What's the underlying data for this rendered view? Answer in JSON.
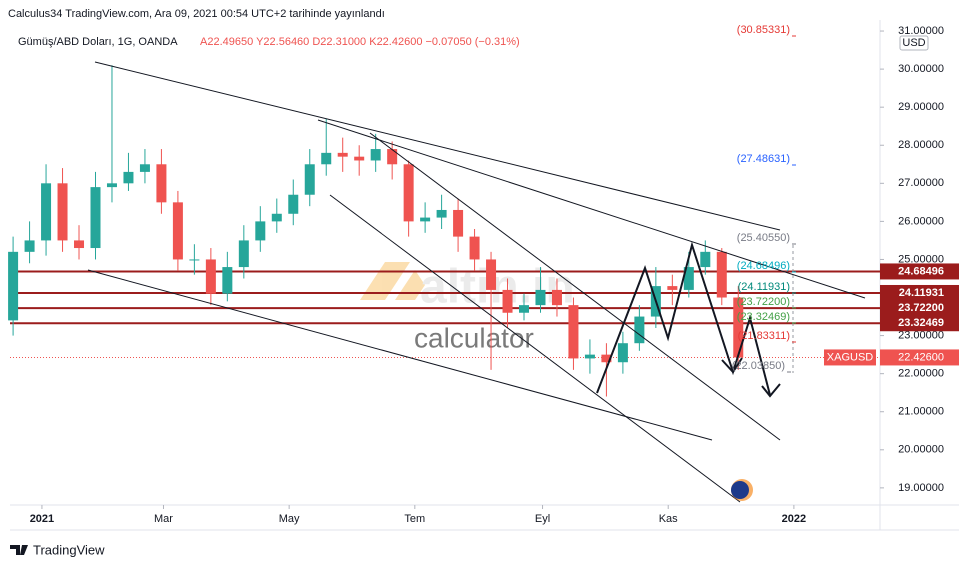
{
  "header": "Calculus34 TradingView.com, Ara 09, 2021 00:54 UTC+2 tarihinde yayınlandı",
  "footer": "TradingView",
  "watermark": [
    "altin.in",
    "calculator"
  ],
  "chart_data": {
    "type": "candlestick",
    "title": "Gümüş/ABD Doları, 1G, OANDA",
    "ohlc_text": "A22.49650 Y22.56460 D22.31000 K22.42600 −0.07050 (−0.31%)",
    "currency": "USD",
    "up_color": "#26a69a",
    "down_color": "#ef5350",
    "x": [
      -14,
      -6,
      2,
      10,
      18,
      26,
      34,
      42,
      50,
      58,
      66,
      74,
      82,
      90,
      98,
      106,
      114,
      122,
      130,
      138,
      146,
      154,
      162,
      170,
      178,
      186,
      194,
      202,
      210,
      218,
      226,
      234,
      242,
      250,
      258,
      266,
      274,
      282,
      290,
      298,
      306,
      314,
      322,
      330,
      338
    ],
    "open": [
      23.4,
      25.2,
      25.5,
      27.0,
      25.5,
      25.3,
      26.9,
      27.0,
      27.3,
      27.5,
      26.5,
      25.0,
      25.0,
      24.1,
      24.8,
      25.5,
      26.0,
      26.2,
      26.7,
      27.5,
      27.8,
      27.7,
      27.6,
      27.9,
      27.5,
      26.0,
      26.1,
      26.3,
      25.6,
      25.0,
      24.2,
      23.6,
      23.8,
      24.2,
      23.8,
      22.4,
      22.5,
      22.3,
      22.8,
      23.5,
      24.3,
      24.2,
      24.8,
      25.2,
      24.0
    ],
    "high": [
      25.6,
      26.0,
      27.5,
      27.4,
      25.9,
      27.3,
      30.1,
      27.8,
      27.9,
      27.9,
      26.8,
      25.4,
      25.3,
      25.2,
      25.9,
      26.4,
      26.6,
      27.1,
      27.9,
      28.7,
      28.2,
      28.0,
      28.3,
      28.1,
      27.6,
      26.5,
      26.7,
      26.6,
      25.8,
      25.2,
      24.5,
      24.1,
      24.8,
      24.5,
      24.0,
      22.9,
      22.8,
      23.1,
      23.8,
      24.8,
      24.6,
      25.2,
      25.5,
      25.3,
      24.3
    ],
    "low": [
      23.0,
      24.9,
      25.1,
      25.2,
      25.0,
      25.0,
      26.5,
      26.8,
      27.0,
      26.2,
      24.7,
      24.6,
      23.8,
      23.9,
      24.5,
      25.2,
      25.7,
      25.9,
      26.4,
      27.2,
      27.3,
      27.2,
      27.3,
      27.1,
      25.6,
      25.7,
      25.8,
      25.2,
      24.7,
      22.1,
      23.2,
      23.4,
      23.6,
      23.5,
      22.1,
      22.0,
      21.4,
      22.0,
      22.6,
      23.2,
      23.8,
      24.0,
      24.6,
      23.8,
      22.1
    ],
    "close": [
      25.2,
      25.5,
      27.0,
      25.5,
      25.3,
      26.9,
      27.0,
      27.3,
      27.5,
      26.5,
      25.0,
      25.0,
      24.1,
      24.8,
      25.5,
      26.0,
      26.2,
      26.7,
      27.5,
      27.8,
      27.7,
      27.6,
      27.9,
      27.5,
      26.0,
      26.1,
      26.3,
      25.6,
      25.0,
      24.2,
      23.6,
      23.8,
      24.2,
      23.8,
      22.4,
      22.5,
      22.3,
      22.8,
      23.5,
      24.3,
      24.2,
      24.8,
      25.2,
      24.0,
      22.426
    ],
    "xlim": [
      -15.5,
      406.8
    ],
    "xticks": [
      {
        "value": 0,
        "label": "2021"
      },
      {
        "value": 59,
        "label": "Mar"
      },
      {
        "value": 120,
        "label": "May"
      },
      {
        "value": 181,
        "label": "Tem"
      },
      {
        "value": 243,
        "label": "Eyl"
      },
      {
        "value": 304,
        "label": "Kas"
      },
      {
        "value": 365,
        "label": "2022"
      }
    ],
    "ylim": [
      18.55,
      31.29
    ],
    "yticks": [
      {
        "value": 19,
        "label": "19.00000"
      },
      {
        "value": 20,
        "label": "20.00000"
      },
      {
        "value": 21,
        "label": "21.00000"
      },
      {
        "value": 22,
        "label": "22.00000"
      },
      {
        "value": 23,
        "label": "23.00000"
      },
      {
        "value": 24,
        "label": "24.00000"
      },
      {
        "value": 25,
        "label": "25.00000"
      },
      {
        "value": 26,
        "label": "26.00000"
      },
      {
        "value": 27,
        "label": "27.00000"
      },
      {
        "value": 28,
        "label": "28.00000"
      },
      {
        "value": 29,
        "label": "29.00000"
      },
      {
        "value": 30,
        "label": "30.00000"
      },
      {
        "value": 31,
        "label": "31.00000"
      }
    ],
    "levels": {
      "color": "#9b1c1c",
      "values": [
        {
          "value": 24.68496,
          "label": "24.68496"
        },
        {
          "value": 24.11931,
          "label": "24.11931"
        },
        {
          "value": 23.722,
          "label": "23.72200"
        },
        {
          "value": 23.32469,
          "label": "23.32469"
        }
      ]
    },
    "last_price": {
      "name": "XAGUSD",
      "value": 22.426,
      "label": "22.42600",
      "color": "#ef5350"
    },
    "annotations": [
      {
        "text": "(30.85331)",
        "color": "#e53935"
      },
      {
        "text": "(27.48631)",
        "color": "#2962ff"
      },
      {
        "text": "(25.40550)",
        "color": "#787b86"
      },
      {
        "text": "(24.68496)",
        "color": "#00acc1"
      },
      {
        "text": "(24.11931)",
        "color": "#00897b"
      },
      {
        "text": "(23.72200)",
        "color": "#43a047"
      },
      {
        "text": "(23.32469)",
        "color": "#43a047"
      },
      {
        "text": "(21.83311)",
        "color": "#e53935"
      },
      {
        "text": "(22.03850)",
        "color": "#787b86"
      }
    ]
  }
}
